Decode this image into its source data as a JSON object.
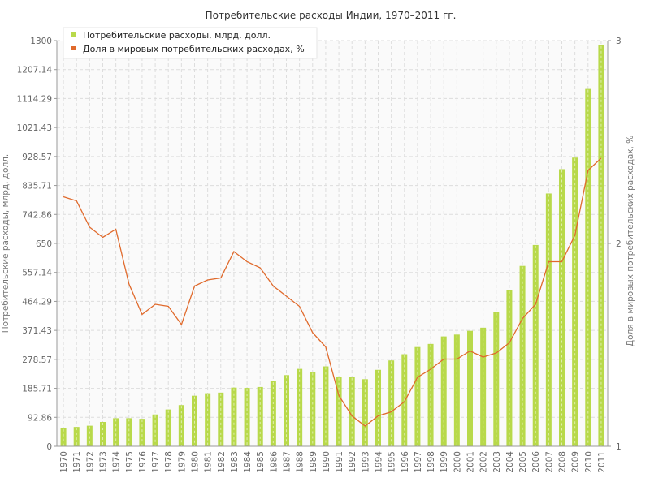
{
  "chart_data": {
    "type": "bar",
    "title": "Потребительские расходы Индии, 1970–2011 гг.",
    "ylabel": "Потребительские расходы, млрд. долл.",
    "y2label": "Доля в мировых потребительских расходах, %",
    "ylim": [
      0,
      1300
    ],
    "y2lim": [
      1,
      3
    ],
    "y_ticks": [
      "0",
      "92.86",
      "185.71",
      "278.57",
      "371.43",
      "464.29",
      "557.14",
      "650",
      "742.86",
      "835.71",
      "928.57",
      "1021.43",
      "1114.29",
      "1207.14",
      "1300"
    ],
    "y2_ticks": [
      "1",
      "2",
      "3"
    ],
    "grid": true,
    "legend_position": "top-left",
    "categories": [
      "1970",
      "1971",
      "1972",
      "1973",
      "1974",
      "1975",
      "1976",
      "1977",
      "1978",
      "1979",
      "1980",
      "1981",
      "1982",
      "1983",
      "1984",
      "1985",
      "1986",
      "1987",
      "1988",
      "1989",
      "1990",
      "1991",
      "1992",
      "1993",
      "1994",
      "1995",
      "1996",
      "1997",
      "1998",
      "1999",
      "2000",
      "2001",
      "2002",
      "2003",
      "2004",
      "2005",
      "2006",
      "2007",
      "2008",
      "2009",
      "2010",
      "2011"
    ],
    "series": [
      {
        "name": "Потребительские расходы, млрд. долл.",
        "type": "bar",
        "axis": "left",
        "color": "#b8d94a",
        "values": [
          58,
          62,
          66,
          78,
          90,
          90,
          88,
          102,
          118,
          132,
          162,
          170,
          172,
          188,
          187,
          190,
          208,
          228,
          248,
          238,
          256,
          222,
          222,
          215,
          245,
          275,
          295,
          318,
          328,
          352,
          358,
          370,
          380,
          430,
          500,
          578,
          645,
          810,
          888,
          925,
          1145,
          1285
        ]
      },
      {
        "name": "Доля в мировых потребительских расходах, %",
        "type": "line",
        "axis": "right",
        "color": "#e06a2c",
        "values": [
          2.23,
          2.21,
          2.08,
          2.03,
          2.07,
          1.8,
          1.65,
          1.7,
          1.69,
          1.6,
          1.79,
          1.82,
          1.83,
          1.96,
          1.91,
          1.88,
          1.79,
          1.74,
          1.69,
          1.56,
          1.49,
          1.25,
          1.15,
          1.1,
          1.15,
          1.17,
          1.22,
          1.34,
          1.38,
          1.43,
          1.43,
          1.47,
          1.44,
          1.46,
          1.51,
          1.63,
          1.7,
          1.91,
          1.91,
          2.04,
          2.36,
          2.42
        ]
      }
    ]
  },
  "legend": {
    "items": [
      {
        "label": "Потребительские расходы, млрд. долл.",
        "color": "#b8d94a"
      },
      {
        "label": "Доля в мировых потребительских расходах, %",
        "color": "#e06a2c"
      }
    ]
  }
}
